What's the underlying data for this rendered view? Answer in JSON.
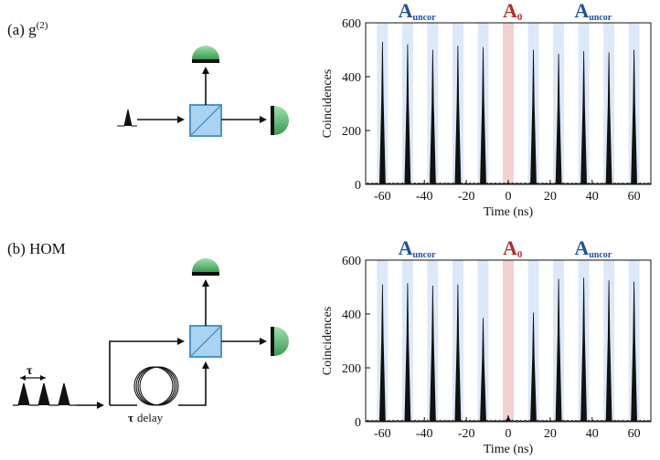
{
  "panel_a": {
    "label": "(a) g",
    "superscript": "(2)"
  },
  "panel_b": {
    "label": "(b) HOM",
    "tau": "τ",
    "delay_label": "τ delay"
  },
  "labels": {
    "a_uncor_main": "A",
    "a_uncor_sub": "uncor",
    "a0_main": "A",
    "a0_sub": "0"
  },
  "colors": {
    "uncor": "#1f4fa0",
    "zero": "#b52b2b",
    "band_blue": "#dde8f8",
    "band_red": "#f3d1d1",
    "detector": "#5fba76",
    "beamsplitter": "#5aa5da"
  },
  "chart_data": [
    {
      "type": "bar",
      "panel": "a",
      "x": [
        -60,
        -48,
        -36,
        -24,
        -12,
        0,
        12,
        24,
        36,
        48,
        60
      ],
      "values": [
        530,
        520,
        500,
        515,
        510,
        8,
        500,
        485,
        495,
        490,
        500
      ],
      "xlabel": "Time (ns)",
      "ylabel": "Coincidences",
      "xlim": [
        -68,
        68
      ],
      "ylim": [
        0,
        600
      ],
      "xticks": [
        -60,
        -40,
        -20,
        0,
        20,
        40,
        60
      ],
      "yticks": [
        0,
        200,
        400,
        600
      ],
      "annotations": [
        "A uncor",
        "A 0",
        "A uncor"
      ]
    },
    {
      "type": "bar",
      "panel": "b",
      "x": [
        -60,
        -48,
        -36,
        -24,
        -12,
        0,
        12,
        24,
        36,
        48,
        60
      ],
      "values": [
        510,
        515,
        505,
        510,
        385,
        22,
        405,
        530,
        535,
        525,
        520
      ],
      "xlabel": "Time (ns)",
      "ylabel": "Coincidences",
      "xlim": [
        -68,
        68
      ],
      "ylim": [
        0,
        600
      ],
      "xticks": [
        -60,
        -40,
        -20,
        0,
        20,
        40,
        60
      ],
      "yticks": [
        0,
        200,
        400,
        600
      ],
      "annotations": [
        "A uncor",
        "A 0",
        "A uncor"
      ]
    }
  ]
}
